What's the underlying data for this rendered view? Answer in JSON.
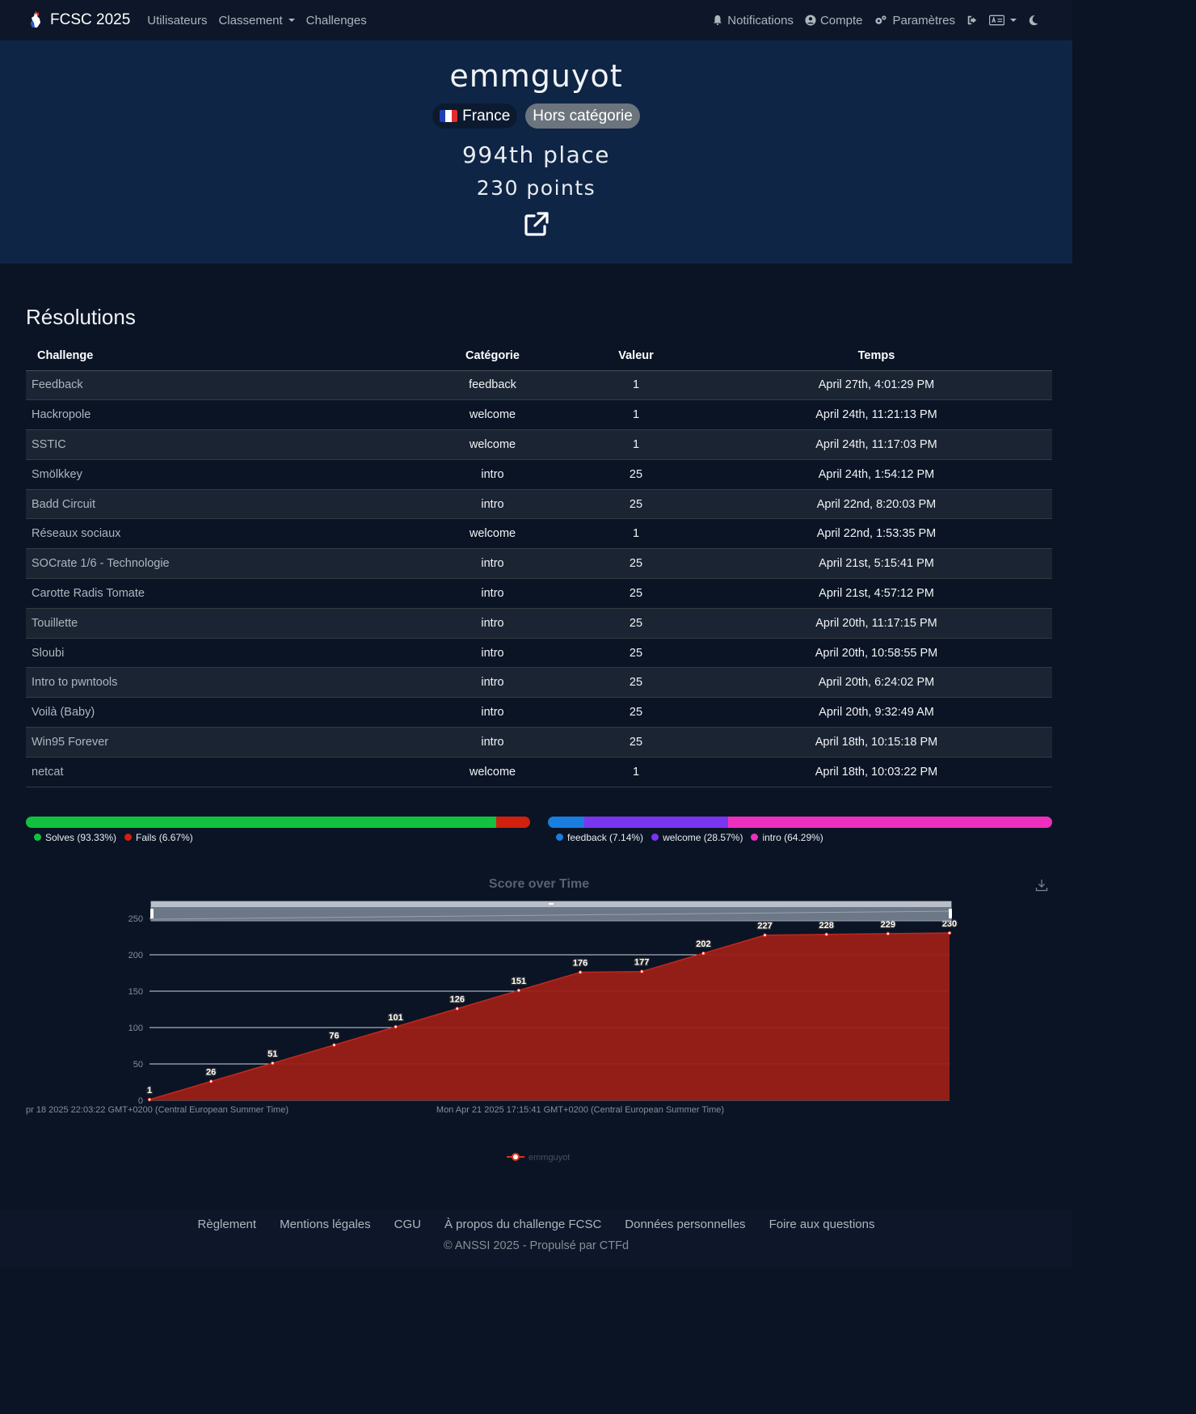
{
  "nav": {
    "brand": "FCSC 2025",
    "links": [
      "Utilisateurs",
      "Classement",
      "Challenges"
    ],
    "right": {
      "notifications": "Notifications",
      "account": "Compte",
      "settings": "Paramètres"
    }
  },
  "profile": {
    "name": "emmguyot",
    "country": "France",
    "category": "Hors catégorie",
    "place": "994th place",
    "points": "230 points"
  },
  "solves": {
    "title": "Résolutions",
    "headers": [
      "Challenge",
      "Catégorie",
      "Valeur",
      "Temps"
    ],
    "rows": [
      [
        "Feedback",
        "feedback",
        "1",
        "April 27th, 4:01:29 PM"
      ],
      [
        "Hackropole",
        "welcome",
        "1",
        "April 24th, 11:21:13 PM"
      ],
      [
        "SSTIC",
        "welcome",
        "1",
        "April 24th, 11:17:03 PM"
      ],
      [
        "Smölkkey",
        "intro",
        "25",
        "April 24th, 1:54:12 PM"
      ],
      [
        "Badd Circuit",
        "intro",
        "25",
        "April 22nd, 8:20:03 PM"
      ],
      [
        "Réseaux sociaux",
        "welcome",
        "1",
        "April 22nd, 1:53:35 PM"
      ],
      [
        "SOCrate 1/6 - Technologie",
        "intro",
        "25",
        "April 21st, 5:15:41 PM"
      ],
      [
        "Carotte Radis Tomate",
        "intro",
        "25",
        "April 21st, 4:57:12 PM"
      ],
      [
        "Touillette",
        "intro",
        "25",
        "April 20th, 11:17:15 PM"
      ],
      [
        "Sloubi",
        "intro",
        "25",
        "April 20th, 10:58:55 PM"
      ],
      [
        "Intro to pwntools",
        "intro",
        "25",
        "April 20th, 6:24:02 PM"
      ],
      [
        "Voilà (Baby)",
        "intro",
        "25",
        "April 20th, 9:32:49 AM"
      ],
      [
        "Win95 Forever",
        "intro",
        "25",
        "April 18th, 10:15:18 PM"
      ],
      [
        "netcat",
        "welcome",
        "1",
        "April 18th, 10:03:22 PM"
      ]
    ]
  },
  "solve_ratio": {
    "segments": [
      {
        "label": "Solves (93.33%)",
        "fraction": 0.9333,
        "color": "#12c23f"
      },
      {
        "label": "Fails (6.67%)",
        "fraction": 0.0667,
        "color": "#d2200e"
      }
    ]
  },
  "category_breakdown": {
    "segments": [
      {
        "label": "feedback (7.14%)",
        "fraction": 0.0714,
        "color": "#1a7de0"
      },
      {
        "label": "welcome (28.57%)",
        "fraction": 0.2857,
        "color": "#7a35f0"
      },
      {
        "label": "intro (64.29%)",
        "fraction": 0.6429,
        "color": "#ee2fbd"
      }
    ]
  },
  "colors": {
    "navbar": "#0d1729",
    "hero": "#0f2546",
    "background": "#0a1425",
    "series": "#9b1f17"
  },
  "chart_data": {
    "type": "area",
    "title": "Score over Time",
    "x_tick_labels": [
      "pr 18 2025 22:03:22 GMT+0200 (Central European Summer Time)",
      "Mon Apr 21 2025 17:15:41 GMT+0200 (Central European Summer Time)"
    ],
    "y_ticks": [
      0,
      50,
      100,
      150,
      200,
      250
    ],
    "ylim": [
      0,
      250
    ],
    "series": [
      {
        "name": "emmguyot",
        "values": [
          1,
          26,
          51,
          76,
          101,
          126,
          151,
          176,
          177,
          202,
          227,
          228,
          229,
          230
        ]
      }
    ],
    "grid": true,
    "legend": "bottom-center"
  },
  "footer": {
    "links": [
      "Règlement",
      "Mentions légales",
      "CGU",
      "À propos du challenge FCSC",
      "Données personnelles",
      "Foire aux questions"
    ],
    "copyright": "© ANSSI 2025 - Propulsé par CTFd"
  }
}
